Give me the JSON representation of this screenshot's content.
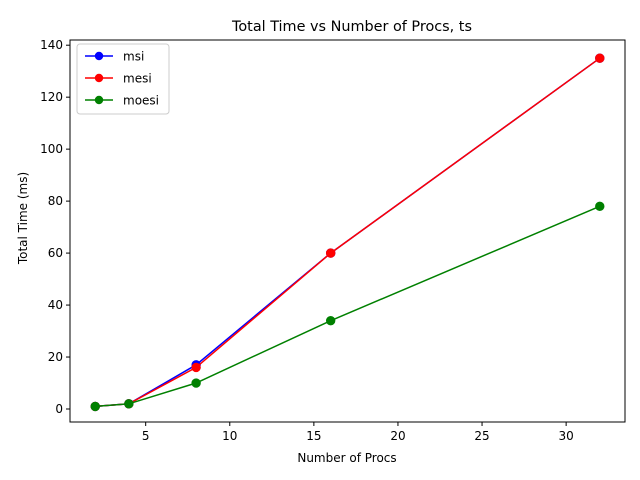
{
  "chart_data": {
    "type": "line",
    "title": "Total Time vs Number of Procs, ts",
    "xlabel": "Number of Procs",
    "ylabel": "Total Time (ms)",
    "xlim": [
      0.5,
      33.5
    ],
    "ylim": [
      -5,
      142
    ],
    "xticks": [
      5,
      10,
      15,
      20,
      25,
      30
    ],
    "yticks": [
      0,
      20,
      40,
      60,
      80,
      100,
      120,
      140
    ],
    "grid": false,
    "legend_position": "top-left",
    "x": [
      2,
      4,
      8,
      16,
      32
    ],
    "series": [
      {
        "name": "msi",
        "color": "#0000ff",
        "values": [
          1,
          2,
          17,
          60,
          135
        ]
      },
      {
        "name": "mesi",
        "color": "#ff0000",
        "values": [
          1,
          2,
          16,
          60,
          135
        ]
      },
      {
        "name": "moesi",
        "color": "#008000",
        "values": [
          1,
          2,
          10,
          34,
          78
        ]
      }
    ]
  }
}
